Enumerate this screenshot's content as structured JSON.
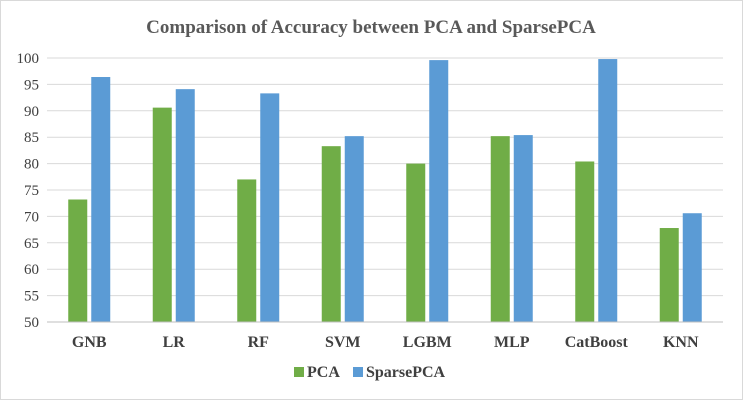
{
  "chart_data": {
    "type": "bar",
    "title": "Comparison of Accuracy between PCA and SparsePCA",
    "xlabel": "",
    "ylabel": "",
    "categories": [
      "GNB",
      "LR",
      "RF",
      "SVM",
      "LGBM",
      "MLP",
      "CatBoost",
      "KNN"
    ],
    "series": [
      {
        "name": "PCA",
        "color": "#70ad47",
        "values": [
          73.2,
          90.6,
          77.0,
          83.3,
          80.0,
          85.2,
          80.4,
          67.8
        ]
      },
      {
        "name": "SparsePCA",
        "color": "#5b9bd5",
        "values": [
          96.4,
          94.1,
          93.3,
          85.2,
          99.6,
          85.4,
          99.8,
          70.6
        ]
      }
    ],
    "ylim": [
      50,
      100
    ],
    "yticks": [
      "50",
      "55",
      "60",
      "65",
      "70",
      "75",
      "80",
      "85",
      "90",
      "95",
      "100"
    ],
    "grid": true,
    "legend_position": "bottom"
  }
}
